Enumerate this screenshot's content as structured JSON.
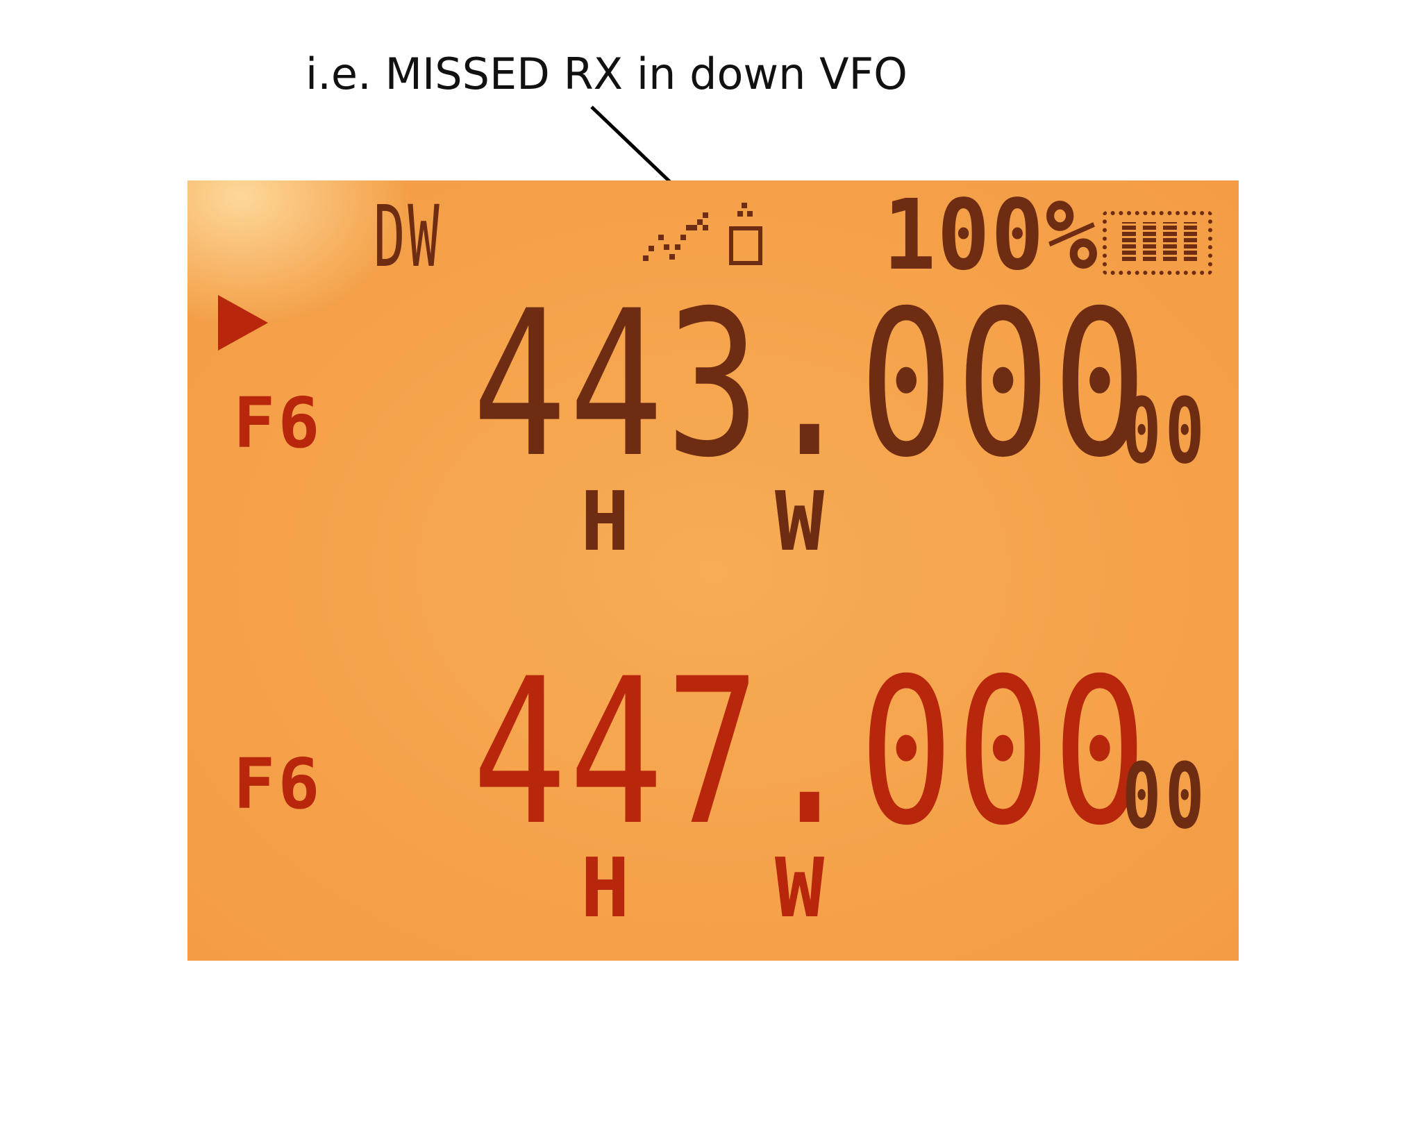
{
  "annotation": {
    "caption": "i.e. MISSED RX in down VFO",
    "highlight_color": "#e51e1e"
  },
  "lcd": {
    "background_color": "#f5a24a",
    "status_bar": {
      "mode": "DW",
      "battery_percent": "100%",
      "icons": [
        "missed-rx-icon",
        "key-lock-icon",
        "battery-icon"
      ]
    },
    "vfo_upper": {
      "label": "F6",
      "frequency": "443.000",
      "frequency_suffix": "00",
      "power_flag": "H",
      "bandwidth_flag": "W",
      "active": true
    },
    "vfo_lower": {
      "label": "F6",
      "frequency": "447.000",
      "frequency_suffix": "00",
      "power_flag": "H",
      "bandwidth_flag": "W",
      "active": false
    }
  }
}
